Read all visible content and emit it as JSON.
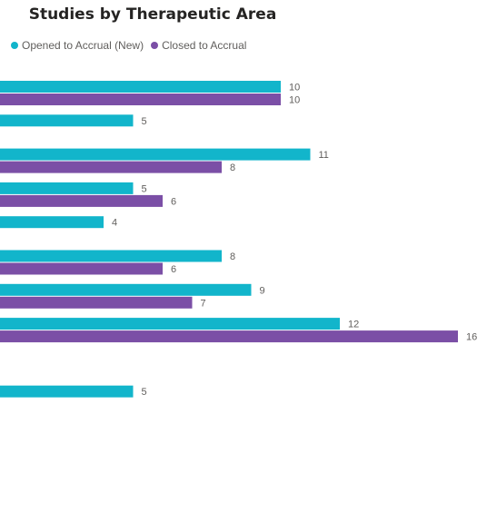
{
  "colors": {
    "opened": "#12B5CB",
    "closed": "#7B4FA6"
  },
  "chart_data": {
    "type": "bar",
    "orientation": "horizontal",
    "title": "Studies by Therapeutic Area",
    "categories": [
      "",
      "",
      "",
      "",
      "",
      "",
      "",
      "",
      "",
      "",
      "",
      ""
    ],
    "series": [
      {
        "name": "Opened to Accrual (New)",
        "values": [
          10,
          5,
          11,
          5,
          4,
          8,
          9,
          12,
          null,
          5,
          null,
          null
        ],
        "labels": [
          "10",
          "5",
          "11",
          "5",
          "4",
          "8",
          "9",
          "12",
          "",
          "5",
          "",
          ""
        ]
      },
      {
        "name": "Closed to Accrual",
        "values": [
          10,
          null,
          8,
          6,
          null,
          6,
          7,
          16,
          null,
          null,
          null,
          null
        ],
        "labels": [
          "10",
          "",
          "8",
          "6",
          "",
          "6",
          "7",
          "16",
          "",
          "",
          "",
          ""
        ]
      }
    ],
    "legend_position": "top-left",
    "grid": false
  }
}
